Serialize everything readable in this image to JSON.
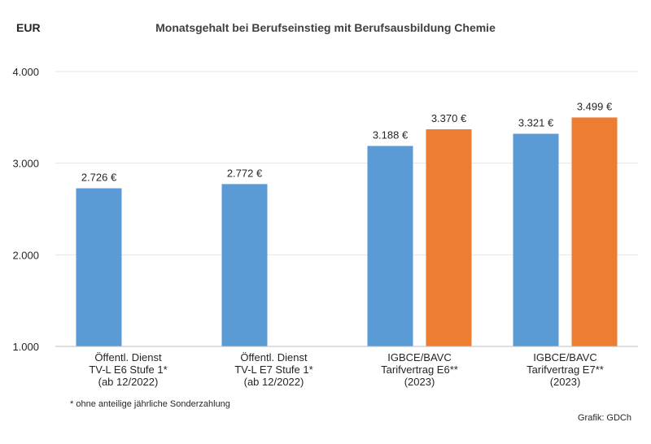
{
  "chart_data": {
    "type": "bar",
    "title": "Monatsgehalt bei Berufseinstieg mit Berufsausbildung Chemie",
    "unit_label": "EUR",
    "ylim": [
      1000,
      4000
    ],
    "y_ticks": [
      1000,
      2000,
      3000,
      4000
    ],
    "y_tick_labels": [
      "1.000",
      "2.000",
      "3.000",
      "4.000"
    ],
    "grid": true,
    "categories": [
      [
        "Öffentl. Dienst",
        "TV-L E6 Stufe 1*",
        "(ab 12/2022)"
      ],
      [
        "Öffentl. Dienst",
        "TV-L E7 Stufe 1*",
        "(ab 12/2022)"
      ],
      [
        "IGBCE/BAVC",
        "Tarifvertrag E6**",
        "(2023)"
      ],
      [
        "IGBCE/BAVC",
        "Tarifvertrag E7**",
        "(2023)"
      ]
    ],
    "series": [
      {
        "color": "#5b9bd5",
        "values": [
          2726,
          2772,
          3188,
          3321
        ],
        "value_labels": [
          "2.726 €",
          "2.772 €",
          "3.188 €",
          "3.321 €"
        ]
      },
      {
        "color": "#ed7d31",
        "values": [
          null,
          null,
          3370,
          3499
        ],
        "value_labels": [
          null,
          null,
          "3.370 €",
          "3.499 €"
        ]
      }
    ]
  },
  "footnote": "* ohne anteilige jährliche Sonderzahlung",
  "credit": "Grafik: GDCh"
}
